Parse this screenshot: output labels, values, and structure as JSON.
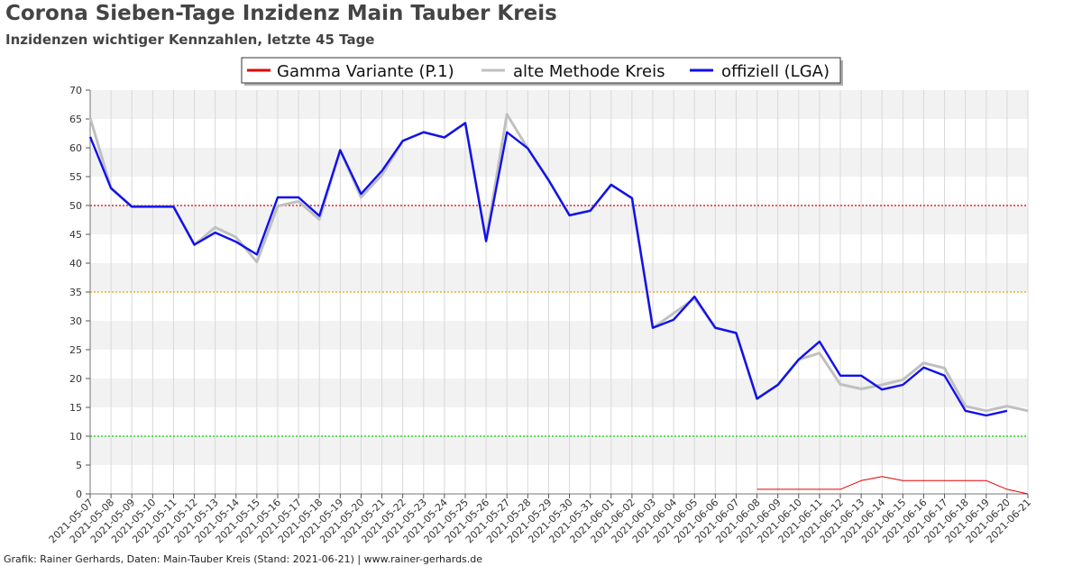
{
  "title": "Corona Sieben-Tage Inzidenz Main Tauber Kreis",
  "subtitle": "Inzidenzen wichtiger Kennzahlen, letzte 45 Tage",
  "footer": "Grafik: Rainer Gerhards, Daten: Main-Tauber Kreis (Stand: 2021-06-21) | www.rainer-gerhards.de",
  "chart_data": {
    "type": "line",
    "title": "Corona Sieben-Tage Inzidenz Main Tauber Kreis",
    "ylim": [
      0,
      70
    ],
    "yticks": [
      0,
      5,
      10,
      15,
      20,
      25,
      30,
      35,
      40,
      45,
      50,
      55,
      60,
      65,
      70
    ],
    "grid": true,
    "legend_position": "top-center",
    "x": [
      "2021-05-07",
      "2021-05-08",
      "2021-05-09",
      "2021-05-10",
      "2021-05-11",
      "2021-05-12",
      "2021-05-13",
      "2021-05-14",
      "2021-05-15",
      "2021-05-16",
      "2021-05-17",
      "2021-05-18",
      "2021-05-19",
      "2021-05-20",
      "2021-05-21",
      "2021-05-22",
      "2021-05-23",
      "2021-05-24",
      "2021-05-25",
      "2021-05-26",
      "2021-05-27",
      "2021-05-28",
      "2021-05-29",
      "2021-05-30",
      "2021-05-31",
      "2021-06-01",
      "2021-06-02",
      "2021-06-03",
      "2021-06-04",
      "2021-06-05",
      "2021-06-06",
      "2021-06-07",
      "2021-06-08",
      "2021-06-09",
      "2021-06-10",
      "2021-06-11",
      "2021-06-12",
      "2021-06-13",
      "2021-06-14",
      "2021-06-15",
      "2021-06-16",
      "2021-06-17",
      "2021-06-18",
      "2021-06-19",
      "2021-06-20",
      "2021-06-21"
    ],
    "series": [
      {
        "name": "Gamma Variante (P.1)",
        "color": "#e00000",
        "values": [
          null,
          null,
          null,
          null,
          null,
          null,
          null,
          null,
          null,
          null,
          null,
          null,
          null,
          null,
          null,
          null,
          null,
          null,
          null,
          null,
          null,
          null,
          null,
          null,
          null,
          null,
          null,
          null,
          null,
          null,
          null,
          null,
          0.8,
          0.8,
          0.8,
          0.8,
          0.8,
          2.3,
          3.0,
          2.3,
          2.3,
          2.3,
          2.3,
          2.3,
          0.8,
          0.0
        ]
      },
      {
        "name": "alte Methode Kreis",
        "color": "#c0c0c0",
        "values": [
          65.2,
          53.0,
          49.8,
          49.8,
          49.8,
          43.2,
          46.2,
          44.5,
          40.2,
          49.9,
          50.7,
          47.6,
          59.6,
          51.4,
          55.3,
          61.2,
          62.7,
          61.8,
          64.3,
          44.1,
          65.8,
          59.9,
          54.4,
          48.3,
          49.1,
          53.6,
          51.2,
          28.8,
          31.3,
          33.9,
          28.8,
          27.9,
          16.5,
          18.9,
          23.3,
          24.4,
          19.0,
          18.2,
          18.9,
          19.8,
          22.7,
          21.8,
          15.2,
          14.4,
          15.2,
          14.4
        ]
      },
      {
        "name": "offiziell (LGA)",
        "color": "#1010ee",
        "values": [
          61.9,
          53.0,
          49.8,
          49.8,
          49.8,
          43.2,
          45.3,
          43.7,
          41.5,
          51.4,
          51.4,
          48.2,
          59.6,
          52.0,
          56.0,
          61.2,
          62.7,
          61.8,
          64.3,
          43.8,
          62.7,
          59.9,
          54.4,
          48.3,
          49.1,
          53.6,
          51.3,
          28.8,
          30.2,
          34.2,
          28.8,
          27.9,
          16.5,
          18.9,
          23.3,
          26.4,
          20.5,
          20.5,
          18.1,
          18.9,
          21.9,
          20.5,
          14.4,
          13.6,
          14.4,
          null
        ]
      }
    ],
    "threshold_lines": [
      {
        "value": 50,
        "color": "#dd0000"
      },
      {
        "value": 35,
        "color": "#f0a000"
      },
      {
        "value": 10,
        "color": "#00cc00"
      }
    ]
  }
}
